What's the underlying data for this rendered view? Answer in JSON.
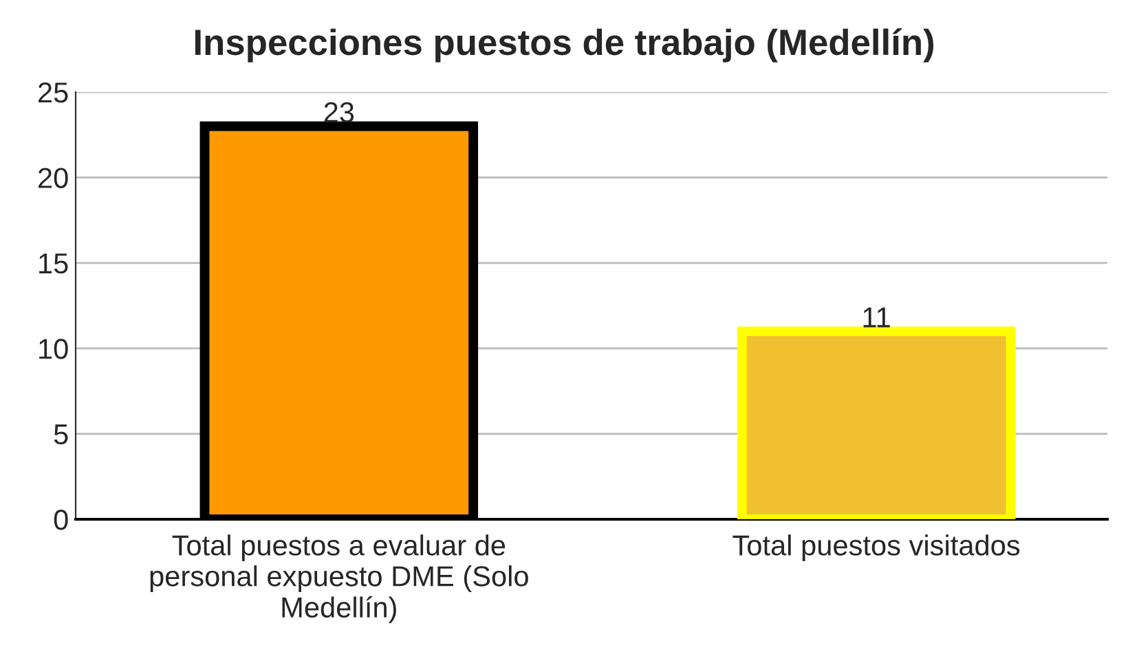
{
  "chart_data": {
    "type": "bar",
    "title": "Inspecciones puestos de trabajo (Medellín)",
    "categories": [
      "Total puestos a evaluar de personal expuesto DME (Solo Medellín)",
      "Total puestos visitados"
    ],
    "values": [
      23,
      11
    ],
    "colors": [
      "#ff9900",
      "#f0c030"
    ],
    "ylim": [
      0,
      25
    ],
    "yticks": [
      0,
      5,
      10,
      15,
      20,
      25
    ],
    "grid": "y",
    "data_labels": true
  }
}
